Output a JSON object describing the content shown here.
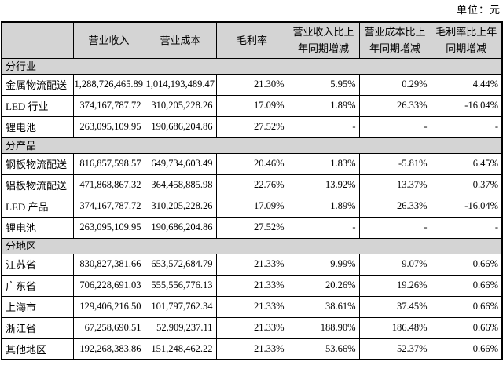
{
  "meta": {
    "unit_label": "单位：元"
  },
  "colors": {
    "header_bg": "#d4d4d4",
    "section_bg": "#d4d4d4",
    "border": "#000000",
    "text": "#000000"
  },
  "table": {
    "columns": [
      "",
      "营业收入",
      "营业成本",
      "毛利率",
      "营业收入比上年同期增减",
      "营业成本比上年同期增减",
      "毛利率比上年同期增减"
    ],
    "sections": [
      {
        "title": "分行业",
        "rows": [
          {
            "label": "金属物流配送",
            "values": [
              "1,288,726,465.89",
              "1,014,193,489.47",
              "21.30%",
              "5.95%",
              "0.29%",
              "4.44%"
            ]
          },
          {
            "label": "LED 行业",
            "values": [
              "374,167,787.72",
              "310,205,228.26",
              "17.09%",
              "1.89%",
              "26.33%",
              "-16.04%"
            ]
          },
          {
            "label": "锂电池",
            "values": [
              "263,095,109.95",
              "190,686,204.86",
              "27.52%",
              "-",
              "-",
              "-"
            ]
          }
        ]
      },
      {
        "title": "分产品",
        "rows": [
          {
            "label": "钢板物流配送",
            "values": [
              "816,857,598.57",
              "649,734,603.49",
              "20.46%",
              "1.83%",
              "-5.81%",
              "6.45%"
            ]
          },
          {
            "label": "铝板物流配送",
            "values": [
              "471,868,867.32",
              "364,458,885.98",
              "22.76%",
              "13.92%",
              "13.37%",
              "0.37%"
            ]
          },
          {
            "label": "LED 产品",
            "values": [
              "374,167,787.72",
              "310,205,228.26",
              "17.09%",
              "1.89%",
              "26.33%",
              "-16.04%"
            ]
          },
          {
            "label": "锂电池",
            "values": [
              "263,095,109.95",
              "190,686,204.86",
              "27.52%",
              "-",
              "-",
              "-"
            ]
          }
        ]
      },
      {
        "title": "分地区",
        "rows": [
          {
            "label": "江苏省",
            "values": [
              "830,827,381.66",
              "653,572,684.79",
              "21.33%",
              "9.99%",
              "9.07%",
              "0.66%"
            ]
          },
          {
            "label": "广东省",
            "values": [
              "706,228,691.03",
              "555,556,776.13",
              "21.33%",
              "20.26%",
              "19.26%",
              "0.66%"
            ]
          },
          {
            "label": "上海市",
            "values": [
              "129,406,216.50",
              "101,797,762.34",
              "21.33%",
              "38.61%",
              "37.45%",
              "0.66%"
            ]
          },
          {
            "label": "浙江省",
            "values": [
              "67,258,690.51",
              "52,909,237.11",
              "21.33%",
              "188.90%",
              "186.48%",
              "0.66%"
            ]
          },
          {
            "label": "其他地区",
            "values": [
              "192,268,383.86",
              "151,248,462.22",
              "21.33%",
              "53.66%",
              "52.37%",
              "0.66%"
            ]
          }
        ]
      }
    ]
  }
}
